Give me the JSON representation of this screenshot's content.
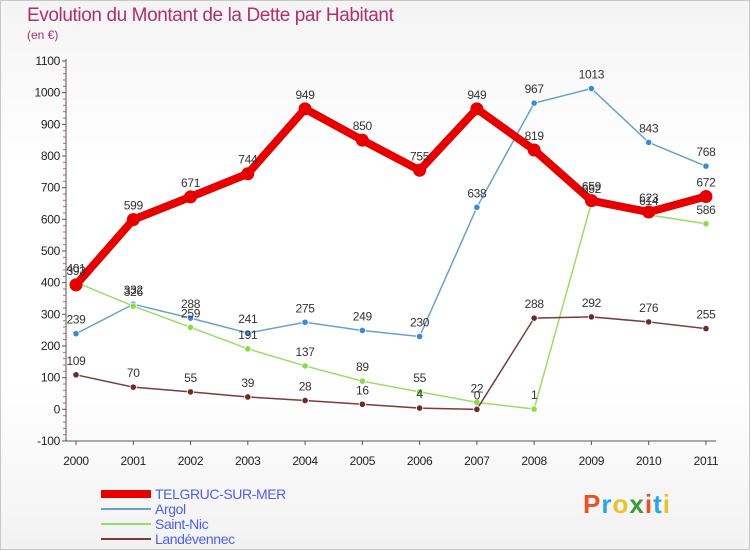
{
  "header": {
    "title": "Evolution du Montant de la Dette par Habitant",
    "subtitle": "(en €)"
  },
  "logo": {
    "text": "Proxiti",
    "colors": [
      "#e8502a",
      "#2aa6e8",
      "#e8c42a",
      "#3a9b3a",
      "#e8502a",
      "#2aa6e8",
      "#e8c42a"
    ]
  },
  "chart_data": {
    "type": "line",
    "title": "Evolution du Montant de la Dette par Habitant",
    "subtitle": "(en €)",
    "x": [
      "2000",
      "2001",
      "2002",
      "2003",
      "2004",
      "2005",
      "2006",
      "2007",
      "2008",
      "2009",
      "2010",
      "2011"
    ],
    "ylim": [
      -100,
      1100
    ],
    "yticks": [
      -100,
      0,
      100,
      200,
      300,
      400,
      500,
      600,
      700,
      800,
      900,
      1000,
      1100
    ],
    "grid": false,
    "legend_position": "bottom-left",
    "series": [
      {
        "name": "TELGRUC-SUR-MER",
        "color": "#e60000",
        "line_width": 8,
        "marker_color": "#e60000",
        "values": [
          393,
          599,
          671,
          744,
          949,
          850,
          755,
          949,
          819,
          659,
          623,
          672
        ]
      },
      {
        "name": "Argol",
        "color": "#6aa0cf",
        "line_width": 1.5,
        "marker_color": "#3c8ad6",
        "values": [
          239,
          332,
          288,
          241,
          275,
          249,
          230,
          638,
          967,
          1013,
          843,
          768
        ]
      },
      {
        "name": "Saint-Nic",
        "color": "#99dd66",
        "line_width": 1.5,
        "marker_color": "#88dd44",
        "values": [
          401,
          326,
          259,
          191,
          137,
          89,
          55,
          22,
          1,
          652,
          614,
          586
        ]
      },
      {
        "name": "Landévennec",
        "color": "#7a3b3b",
        "line_width": 1.5,
        "marker_color": "#6b2a2a",
        "values": [
          109,
          70,
          55,
          39,
          28,
          16,
          4,
          0,
          288,
          292,
          276,
          255
        ]
      }
    ]
  }
}
